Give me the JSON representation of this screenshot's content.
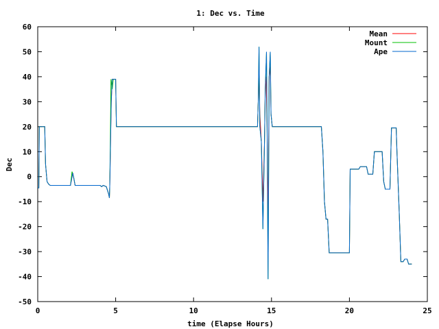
{
  "chart_data": {
    "type": "line",
    "title": "1: Dec vs. Time",
    "xlabel": "time (Elapse Hours)",
    "ylabel": "Dec",
    "xlim": [
      0,
      25
    ],
    "ylim": [
      -50,
      60
    ],
    "x_ticks": [
      0,
      5,
      10,
      15,
      20,
      25
    ],
    "y_ticks": [
      -50,
      -40,
      -30,
      -20,
      -10,
      0,
      10,
      20,
      30,
      40,
      50,
      60
    ],
    "legend_position": "top-right",
    "series": [
      {
        "name": "Mean",
        "color": "#ff0000",
        "points": [
          [
            0,
            -4.5
          ],
          [
            0.07,
            -4.5
          ],
          [
            0.1,
            20
          ],
          [
            0.45,
            20
          ],
          [
            0.5,
            5
          ],
          [
            0.6,
            -2
          ],
          [
            0.7,
            -3
          ],
          [
            0.8,
            -3.5
          ],
          [
            1.0,
            -3.5
          ],
          [
            2.1,
            -3.5
          ],
          [
            2.25,
            1.5
          ],
          [
            2.4,
            -3.5
          ],
          [
            3.6,
            -3.5
          ],
          [
            4.0,
            -3.5
          ],
          [
            4.1,
            -4
          ],
          [
            4.2,
            -3.5
          ],
          [
            4.4,
            -4
          ],
          [
            4.55,
            -7
          ],
          [
            4.6,
            -8.5
          ],
          [
            4.62,
            -4
          ],
          [
            4.65,
            5
          ],
          [
            4.72,
            30
          ],
          [
            4.78,
            39
          ],
          [
            5.0,
            39
          ],
          [
            5.05,
            20
          ],
          [
            5.2,
            20
          ],
          [
            14.1,
            20
          ],
          [
            14.15,
            30
          ],
          [
            14.2,
            44
          ],
          [
            14.25,
            25
          ],
          [
            14.35,
            14
          ],
          [
            14.45,
            -10
          ],
          [
            14.55,
            14
          ],
          [
            14.6,
            35
          ],
          [
            14.65,
            40
          ],
          [
            14.72,
            20
          ],
          [
            14.78,
            -18
          ],
          [
            14.85,
            40
          ],
          [
            14.92,
            44
          ],
          [
            14.97,
            25
          ],
          [
            15.05,
            20
          ],
          [
            18.2,
            20
          ],
          [
            18.3,
            10
          ],
          [
            18.4,
            -10
          ],
          [
            18.5,
            -17
          ],
          [
            18.6,
            -17
          ],
          [
            18.7,
            -30.5
          ],
          [
            20.0,
            -30.5
          ],
          [
            20.05,
            3
          ],
          [
            20.6,
            3
          ],
          [
            20.7,
            4
          ],
          [
            21.1,
            4
          ],
          [
            21.2,
            1
          ],
          [
            21.5,
            1
          ],
          [
            21.6,
            10
          ],
          [
            22.1,
            10
          ],
          [
            22.2,
            -2
          ],
          [
            22.3,
            -5
          ],
          [
            22.6,
            -5
          ],
          [
            22.7,
            19.5
          ],
          [
            23.0,
            19.5
          ],
          [
            23.05,
            10
          ],
          [
            23.2,
            -15
          ],
          [
            23.3,
            -34
          ],
          [
            23.45,
            -34
          ],
          [
            23.55,
            -33
          ],
          [
            23.7,
            -33
          ],
          [
            23.8,
            -35
          ],
          [
            24.0,
            -35
          ]
        ]
      },
      {
        "name": "Mount",
        "color": "#00c000",
        "points": [
          [
            0,
            -4.5
          ],
          [
            0.07,
            -4.5
          ],
          [
            0.1,
            20
          ],
          [
            0.45,
            20
          ],
          [
            0.5,
            5
          ],
          [
            0.6,
            -2
          ],
          [
            0.7,
            -3
          ],
          [
            0.8,
            -3.5
          ],
          [
            1.0,
            -3.5
          ],
          [
            2.1,
            -3.5
          ],
          [
            2.2,
            2
          ],
          [
            2.3,
            0
          ],
          [
            2.4,
            -3.5
          ],
          [
            3.6,
            -3.5
          ],
          [
            4.0,
            -3.5
          ],
          [
            4.1,
            -4
          ],
          [
            4.2,
            -3.5
          ],
          [
            4.4,
            -4
          ],
          [
            4.55,
            -7
          ],
          [
            4.6,
            -8.5
          ],
          [
            4.62,
            -4
          ],
          [
            4.65,
            8
          ],
          [
            4.7,
            39
          ],
          [
            4.78,
            35
          ],
          [
            4.85,
            39
          ],
          [
            5.0,
            39
          ],
          [
            5.05,
            20
          ],
          [
            5.2,
            20
          ],
          [
            14.1,
            20
          ],
          [
            14.15,
            30
          ],
          [
            14.2,
            52
          ],
          [
            14.25,
            20
          ],
          [
            14.35,
            14
          ],
          [
            14.45,
            -21
          ],
          [
            14.55,
            14
          ],
          [
            14.6,
            35
          ],
          [
            14.68,
            50
          ],
          [
            14.72,
            20
          ],
          [
            14.78,
            -41
          ],
          [
            14.85,
            40
          ],
          [
            14.92,
            50
          ],
          [
            14.97,
            25
          ],
          [
            15.05,
            20
          ],
          [
            18.2,
            20
          ],
          [
            18.3,
            10
          ],
          [
            18.4,
            -10
          ],
          [
            18.5,
            -17
          ],
          [
            18.6,
            -17
          ],
          [
            18.7,
            -30.5
          ],
          [
            20.0,
            -30.5
          ],
          [
            20.05,
            3
          ],
          [
            20.6,
            3
          ],
          [
            20.7,
            4
          ],
          [
            21.1,
            4
          ],
          [
            21.2,
            1
          ],
          [
            21.5,
            1
          ],
          [
            21.6,
            10
          ],
          [
            22.1,
            10
          ],
          [
            22.2,
            -2
          ],
          [
            22.3,
            -5
          ],
          [
            22.6,
            -5
          ],
          [
            22.7,
            19.5
          ],
          [
            23.0,
            19.5
          ],
          [
            23.05,
            10
          ],
          [
            23.2,
            -15
          ],
          [
            23.3,
            -34
          ],
          [
            23.45,
            -34
          ],
          [
            23.55,
            -33
          ],
          [
            23.7,
            -33
          ],
          [
            23.8,
            -35
          ],
          [
            24.0,
            -35
          ]
        ]
      },
      {
        "name": "Ape",
        "color": "#0066cc",
        "points": [
          [
            0,
            -4.5
          ],
          [
            0.07,
            -4.5
          ],
          [
            0.1,
            20
          ],
          [
            0.45,
            20
          ],
          [
            0.5,
            5
          ],
          [
            0.6,
            -2
          ],
          [
            0.7,
            -3
          ],
          [
            0.8,
            -3.5
          ],
          [
            1.0,
            -3.5
          ],
          [
            2.1,
            -3.5
          ],
          [
            2.25,
            1.5
          ],
          [
            2.4,
            -3.5
          ],
          [
            3.6,
            -3.5
          ],
          [
            4.0,
            -3.5
          ],
          [
            4.1,
            -4
          ],
          [
            4.2,
            -3.5
          ],
          [
            4.4,
            -4
          ],
          [
            4.55,
            -7
          ],
          [
            4.6,
            -8.5
          ],
          [
            4.62,
            -4
          ],
          [
            4.65,
            5
          ],
          [
            4.72,
            30
          ],
          [
            4.78,
            39
          ],
          [
            5.0,
            39
          ],
          [
            5.05,
            20
          ],
          [
            5.2,
            20
          ],
          [
            14.1,
            20
          ],
          [
            14.15,
            30
          ],
          [
            14.2,
            52
          ],
          [
            14.25,
            20
          ],
          [
            14.35,
            14
          ],
          [
            14.45,
            -21
          ],
          [
            14.55,
            14
          ],
          [
            14.6,
            35
          ],
          [
            14.68,
            50
          ],
          [
            14.72,
            20
          ],
          [
            14.78,
            -41
          ],
          [
            14.85,
            40
          ],
          [
            14.92,
            50
          ],
          [
            14.97,
            25
          ],
          [
            15.05,
            20
          ],
          [
            18.2,
            20
          ],
          [
            18.3,
            10
          ],
          [
            18.4,
            -10
          ],
          [
            18.5,
            -17
          ],
          [
            18.6,
            -17
          ],
          [
            18.7,
            -30.5
          ],
          [
            20.0,
            -30.5
          ],
          [
            20.05,
            3
          ],
          [
            20.6,
            3
          ],
          [
            20.7,
            4
          ],
          [
            21.1,
            4
          ],
          [
            21.2,
            1
          ],
          [
            21.5,
            1
          ],
          [
            21.6,
            10
          ],
          [
            22.1,
            10
          ],
          [
            22.2,
            -2
          ],
          [
            22.3,
            -5
          ],
          [
            22.6,
            -5
          ],
          [
            22.7,
            19.5
          ],
          [
            23.0,
            19.5
          ],
          [
            23.05,
            10
          ],
          [
            23.2,
            -15
          ],
          [
            23.3,
            -34
          ],
          [
            23.45,
            -34
          ],
          [
            23.55,
            -33
          ],
          [
            23.7,
            -33
          ],
          [
            23.8,
            -35
          ],
          [
            24.0,
            -35
          ]
        ]
      }
    ]
  }
}
